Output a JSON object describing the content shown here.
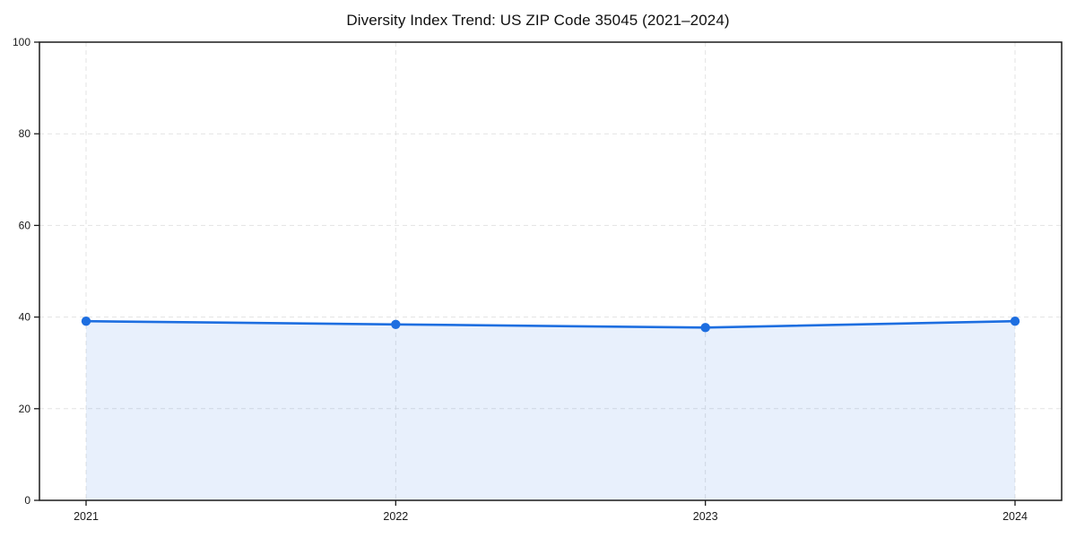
{
  "figure": {
    "background": "#ffffff"
  },
  "chart_data": {
    "type": "area",
    "title": "Diversity Index Trend: US ZIP Code 35045 (2021–2024)",
    "categories": [
      "2021",
      "2022",
      "2023",
      "2024"
    ],
    "series": [
      {
        "name": "Diversity Index",
        "values": [
          39.1,
          38.4,
          37.7,
          39.1
        ]
      }
    ],
    "xlabel": "",
    "ylabel": "",
    "ylim": [
      0,
      100
    ],
    "yticks": [
      0,
      20,
      40,
      60,
      80,
      100
    ],
    "grid": "dashed",
    "legend": "none",
    "marker": "circle",
    "colors": {
      "line": "#1d6ee0",
      "marker": "#1d6ee0",
      "fill": "#1d6ee0",
      "fill_opacity": "0.10",
      "grid": "#e3e3e3",
      "axis": "#1a1a1a",
      "tick_label": "#1a1a1a",
      "title": "#111111"
    }
  }
}
